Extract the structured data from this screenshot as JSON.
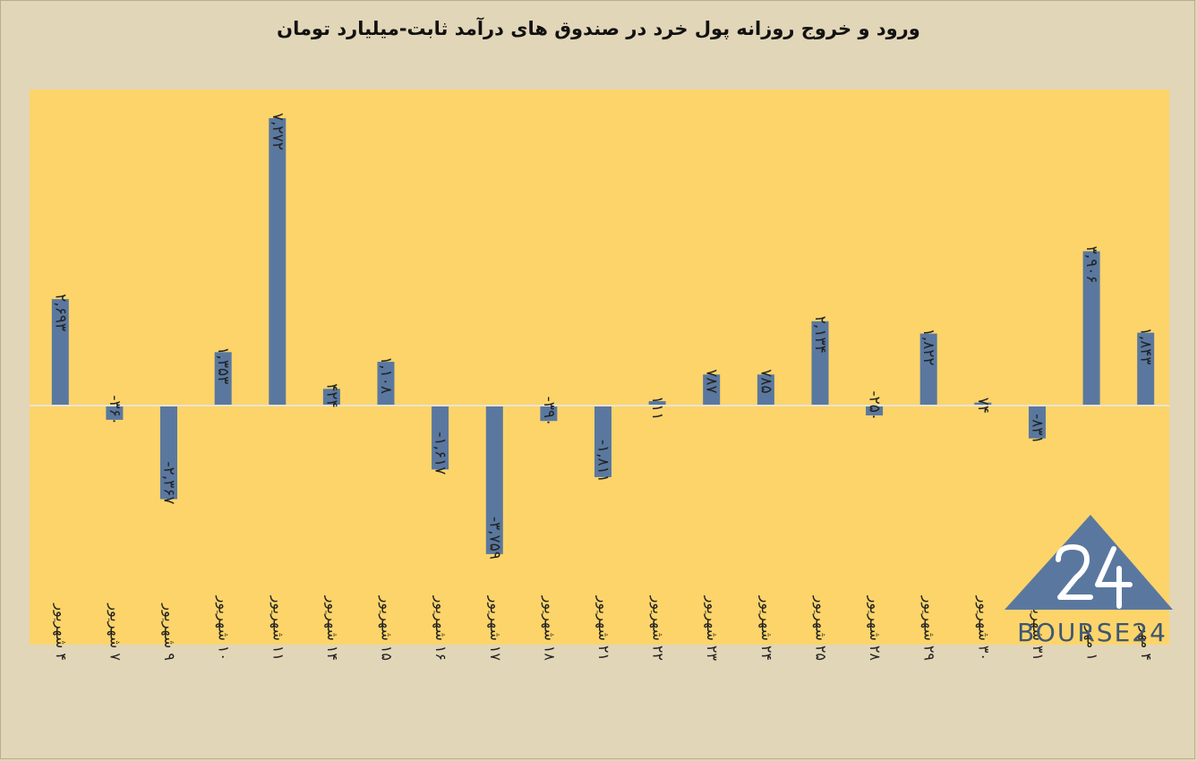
{
  "chart_data": {
    "type": "bar",
    "title": "ورود و خروج روزانه پول خرد در صندوق های درآمد ثابت-میلیارد تومان",
    "xlabel": "",
    "ylabel": "",
    "ylim": [
      -4425,
      5800
    ],
    "grid": false,
    "legend": "none",
    "bar_color": "#5a789f",
    "plot_background": "#fcd46a",
    "zero_line_color": "#e9e4d4",
    "categories": [
      "۴ شهریور",
      "۷ شهریور",
      "۹ شهریور",
      "۱۰ شهریور",
      "۱۱ شهریور",
      "۱۴ شهریور",
      "۱۵ شهریور",
      "۱۶ شهریور",
      "۱۷ شهریور",
      "۱۸ شهریور",
      "۲۱ شهریور",
      "۲۲ شهریور",
      "۲۳ شهریور",
      "۲۴ شهریور",
      "۲۵ شهریور",
      "۲۸ شهریور",
      "۲۹ شهریور",
      "۳۰ شهریور",
      "۳۱ شهریور",
      "۱ مهر",
      "۴ مهر"
    ],
    "values": [
      2693,
      -360,
      -2367,
      1353,
      7272,
      424,
      1108,
      -1617,
      -3759,
      -390,
      -1811,
      111,
      787,
      785,
      2134,
      -250,
      1822,
      74,
      -831,
      3906,
      1843
    ],
    "value_labels": [
      "۲,۶۹۳",
      "-۳۶۰",
      "-۲,۳۶۷",
      "۱,۳۵۳",
      "۷,۲۷۲",
      "۴۲۴",
      "۱,۱۰۸",
      "-۱,۶۱۷",
      "-۳,۷۵۹",
      "-۳۹۰",
      "-۱,۸۱۱",
      "۱۱۱",
      "۷۸۷",
      "۷۸۵",
      "۲,۱۳۴",
      "-۲۵۰",
      "۱,۸۲۲",
      "۷۴",
      "-۸۳۱",
      "۳,۹۰۶",
      "۱,۸۴۳"
    ]
  },
  "logo": {
    "text": "BOURSE24",
    "mark": "24",
    "color": "#3c5677"
  }
}
